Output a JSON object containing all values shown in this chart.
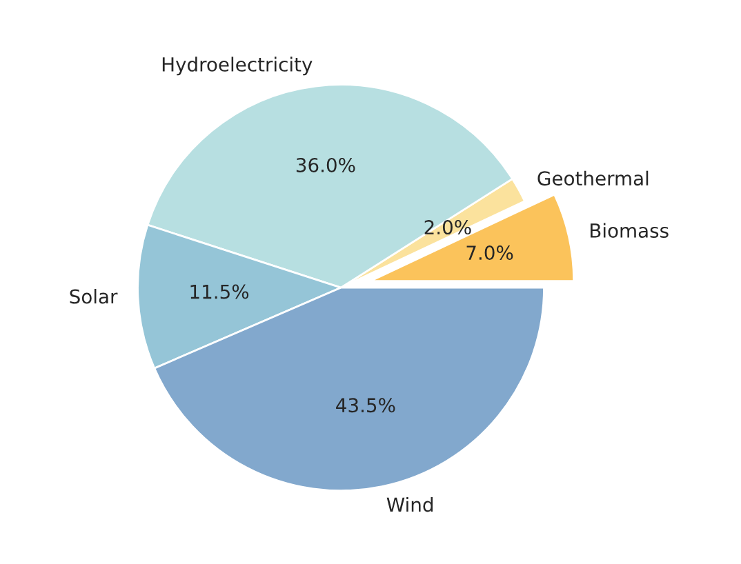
{
  "chart_data": {
    "type": "pie",
    "categories": [
      "Biomass",
      "Geothermal",
      "Hydroelectricity",
      "Solar",
      "Wind"
    ],
    "values": [
      7.0,
      2.0,
      36.0,
      11.5,
      43.5
    ],
    "colors": [
      "#fbc35b",
      "#fbe29d",
      "#b7dfe1",
      "#95c5d7",
      "#82a8cd"
    ],
    "value_labels": [
      "7.0%",
      "2.0%",
      "36.0%",
      "11.5%",
      "43.5%"
    ]
  }
}
